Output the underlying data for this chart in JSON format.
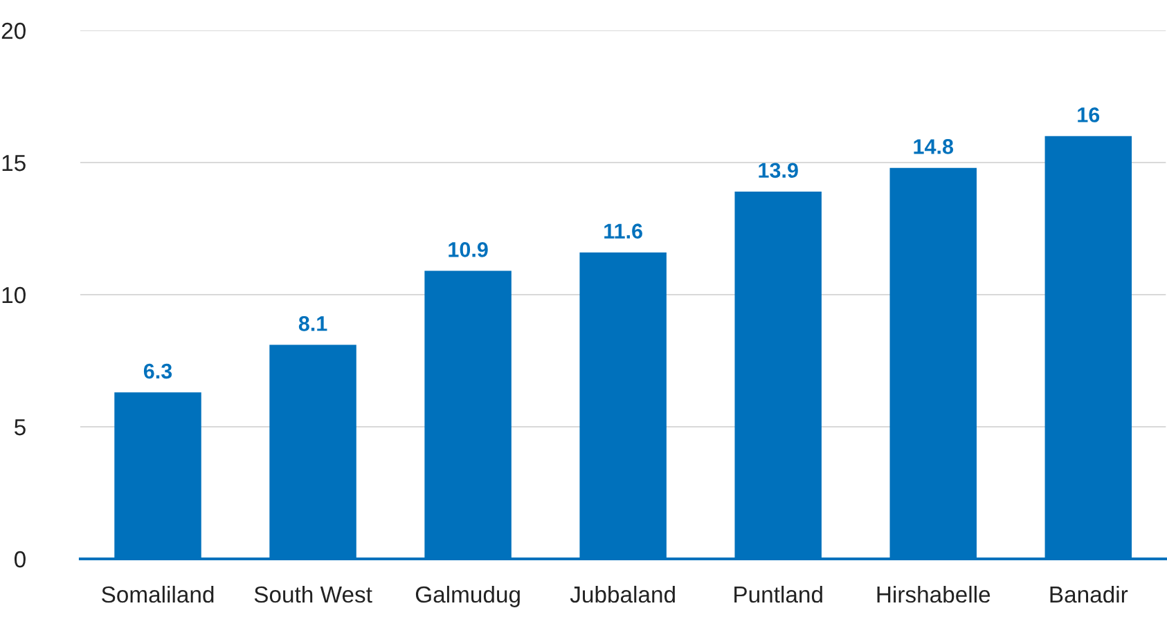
{
  "chart_data": {
    "type": "bar",
    "categories": [
      "Somaliland",
      "South West",
      "Galmudug",
      "Jubbaland",
      "Puntland",
      "Hirshabelle",
      "Banadir"
    ],
    "values": [
      6.3,
      8.1,
      10.9,
      11.6,
      13.9,
      14.8,
      16
    ],
    "color": "#0071bc",
    "ylim": [
      0,
      20
    ],
    "yticks": [
      0,
      5,
      10,
      15,
      20
    ],
    "grid": "y",
    "data_labels": true
  }
}
